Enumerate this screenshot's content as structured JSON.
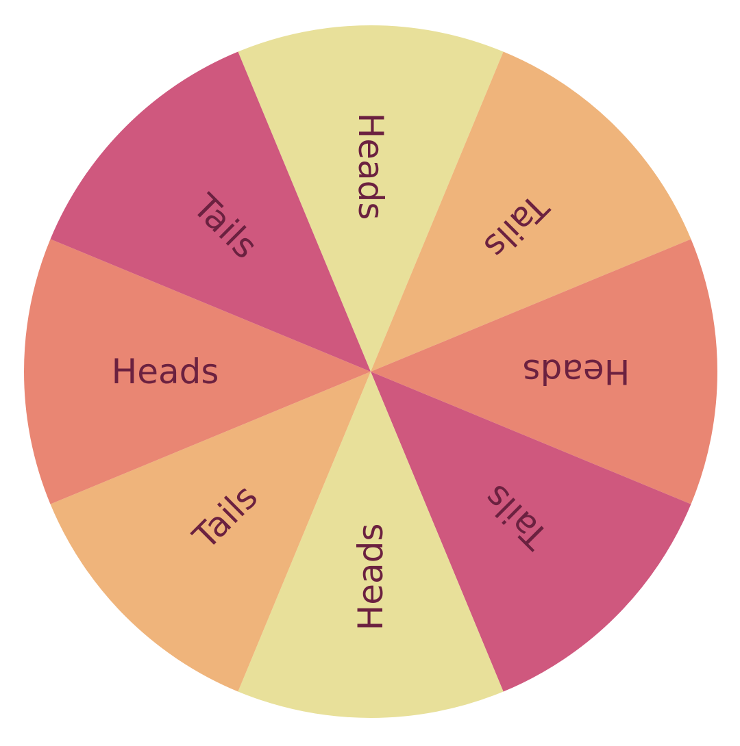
{
  "wheel": {
    "segments": [
      {
        "label": "Heads",
        "color": "#e8e09a"
      },
      {
        "label": "Tails",
        "color": "#efb47b"
      },
      {
        "label": "Heads",
        "color": "#e98673"
      },
      {
        "label": "Tails",
        "color": "#cf587e"
      },
      {
        "label": "Heads",
        "color": "#e8e09a"
      },
      {
        "label": "Tails",
        "color": "#efb47b"
      },
      {
        "label": "Heads",
        "color": "#e98673"
      },
      {
        "label": "Tails",
        "color": "#cf587e"
      }
    ],
    "text_color": "#6b2140"
  }
}
